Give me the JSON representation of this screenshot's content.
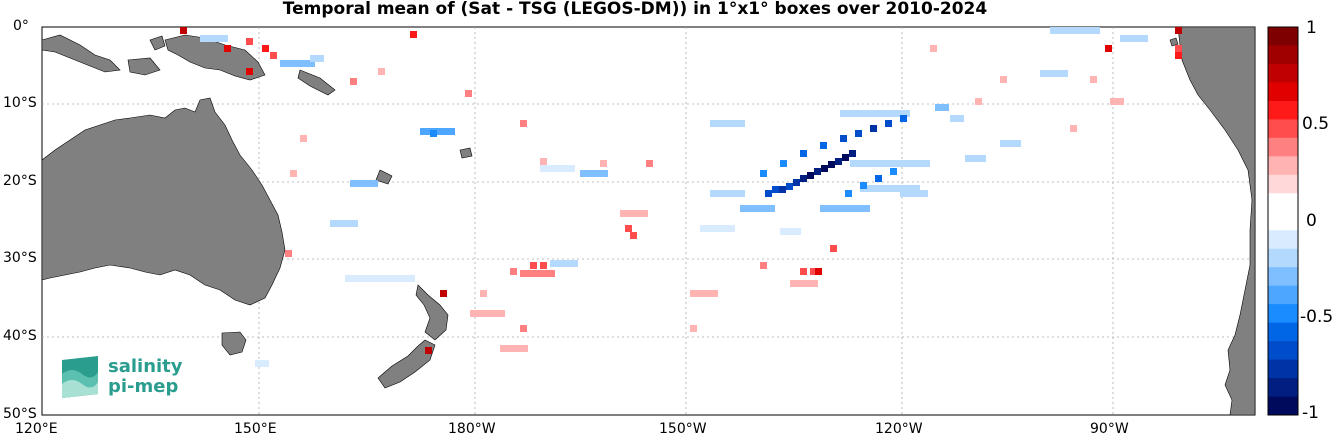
{
  "title": "Temporal mean of (Sat - TSG (LEGOS-DM)) in 1°x1° boxes over 2010-2024",
  "lat_labels": [
    "0°",
    "10°S",
    "20°S",
    "30°S",
    "40°S",
    "50°S"
  ],
  "lon_labels": [
    "120°E",
    "150°E",
    "180°W",
    "150°W",
    "120°W",
    "90°W"
  ],
  "colorbar": {
    "ticks": [
      "1",
      "0.5",
      "0",
      "-0.5",
      "-1"
    ],
    "range": [
      -1,
      1
    ],
    "colors_top_to_bottom": [
      "#7f0000",
      "#a00000",
      "#c00000",
      "#e00000",
      "#ff1a1a",
      "#ff4d4d",
      "#ff8080",
      "#ffb3b3",
      "#ffd9d9",
      "#ffffff",
      "#ffffff",
      "#d9ecff",
      "#b3d9ff",
      "#80bfff",
      "#4da6ff",
      "#1a8cff",
      "#0066e6",
      "#004dcc",
      "#0033a6",
      "#001f80",
      "#000a5c"
    ]
  },
  "logo": {
    "line1": "salinity",
    "line2": "pi-mep"
  },
  "land_color": "#808080"
}
